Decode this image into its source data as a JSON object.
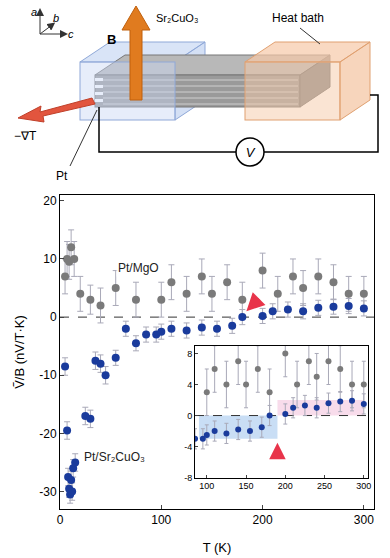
{
  "diagram": {
    "axes": [
      "a",
      "b",
      "c"
    ],
    "field": "B",
    "crystal": "Sr₂CuO₃",
    "bath": "Heat bath",
    "gradient": "−∇T",
    "electrode": "Pt",
    "meter": "V"
  },
  "chart_data": {
    "type": "scatter",
    "x_label": "T (K)",
    "y_label": "Ṽ/B (nV/T·K)",
    "xlim": [
      0,
      310
    ],
    "xticks": [
      0,
      100,
      200,
      300
    ],
    "ylim": [
      -33,
      21
    ],
    "yticks": [
      -30,
      -20,
      -10,
      0,
      10,
      20
    ],
    "grid": false,
    "legend": false,
    "marker": "circle",
    "series": [
      {
        "name": "Pt/MgO",
        "color": "#7a7a7a",
        "label_at": [
          55,
          8.5
        ],
        "x": [
          5,
          7,
          9,
          11,
          14,
          20,
          30,
          40,
          55,
          75,
          100,
          110,
          125,
          140,
          150,
          165,
          180,
          200,
          215,
          230,
          240,
          255,
          270,
          285,
          300
        ],
        "values": [
          7,
          10,
          9.5,
          12,
          10,
          4,
          3,
          2,
          5,
          3,
          3,
          6,
          4,
          7,
          4,
          6,
          3,
          8,
          4,
          7,
          5,
          7,
          6,
          4,
          4
        ],
        "errors": [
          3,
          3,
          3,
          3,
          3,
          3,
          2.5,
          3,
          3,
          3,
          3,
          3,
          3,
          3,
          3,
          3,
          3,
          3,
          3,
          3,
          3,
          3,
          3,
          3,
          3
        ]
      },
      {
        "name": "Pt/Sr₂CuO₃",
        "color": "#1a3b9c",
        "label_at": [
          22,
          -24
        ],
        "x": [
          5,
          7,
          8,
          9,
          10,
          11,
          12,
          13,
          15,
          25,
          30,
          35,
          40,
          45,
          55,
          65,
          75,
          85,
          95,
          100,
          110,
          125,
          140,
          155,
          170,
          180,
          200,
          210,
          225,
          240,
          255,
          270,
          285,
          300
        ],
        "values": [
          -8.5,
          -19.5,
          -27.5,
          -29.5,
          -30.5,
          -28,
          -30,
          -26,
          -25,
          -17,
          -17.5,
          -7.5,
          -8,
          -10,
          -7,
          -2,
          -4.5,
          -3,
          -3,
          -2.5,
          -2,
          -2.3,
          -1.8,
          -2,
          -1.5,
          0,
          0.2,
          1,
          1.3,
          1,
          1.6,
          1.8,
          1.9,
          1.5
        ],
        "errors": [
          1.5,
          1.5,
          1.5,
          1.5,
          1.5,
          1.5,
          1.5,
          1.5,
          1.5,
          1.5,
          1.5,
          1.5,
          1.5,
          1.5,
          1.3,
          1.3,
          1.3,
          1.3,
          1.3,
          1.3,
          1.3,
          1.3,
          1.3,
          1.3,
          1.3,
          1.3,
          1.3,
          1.3,
          1.3,
          1.3,
          1.3,
          1.3,
          1.3,
          1.3
        ]
      }
    ],
    "arrow": {
      "x": 184,
      "y": 1,
      "color": "#e8344a"
    },
    "inset": {
      "xlim": [
        85,
        305
      ],
      "xticks": [
        100,
        150,
        200,
        250,
        300
      ],
      "ylim": [
        -8,
        9
      ],
      "yticks": [
        -8,
        -4,
        0,
        4,
        8
      ],
      "arrow": {
        "x": 190,
        "y": -3.5,
        "color": "#e8344a"
      },
      "bands": [
        {
          "x": [
            90,
            190
          ],
          "y": [
            -3,
            0
          ],
          "color": "#bcd6f2"
        },
        {
          "x": [
            190,
            300
          ],
          "y": [
            0,
            2
          ],
          "color": "#f6d3e6"
        }
      ]
    }
  }
}
